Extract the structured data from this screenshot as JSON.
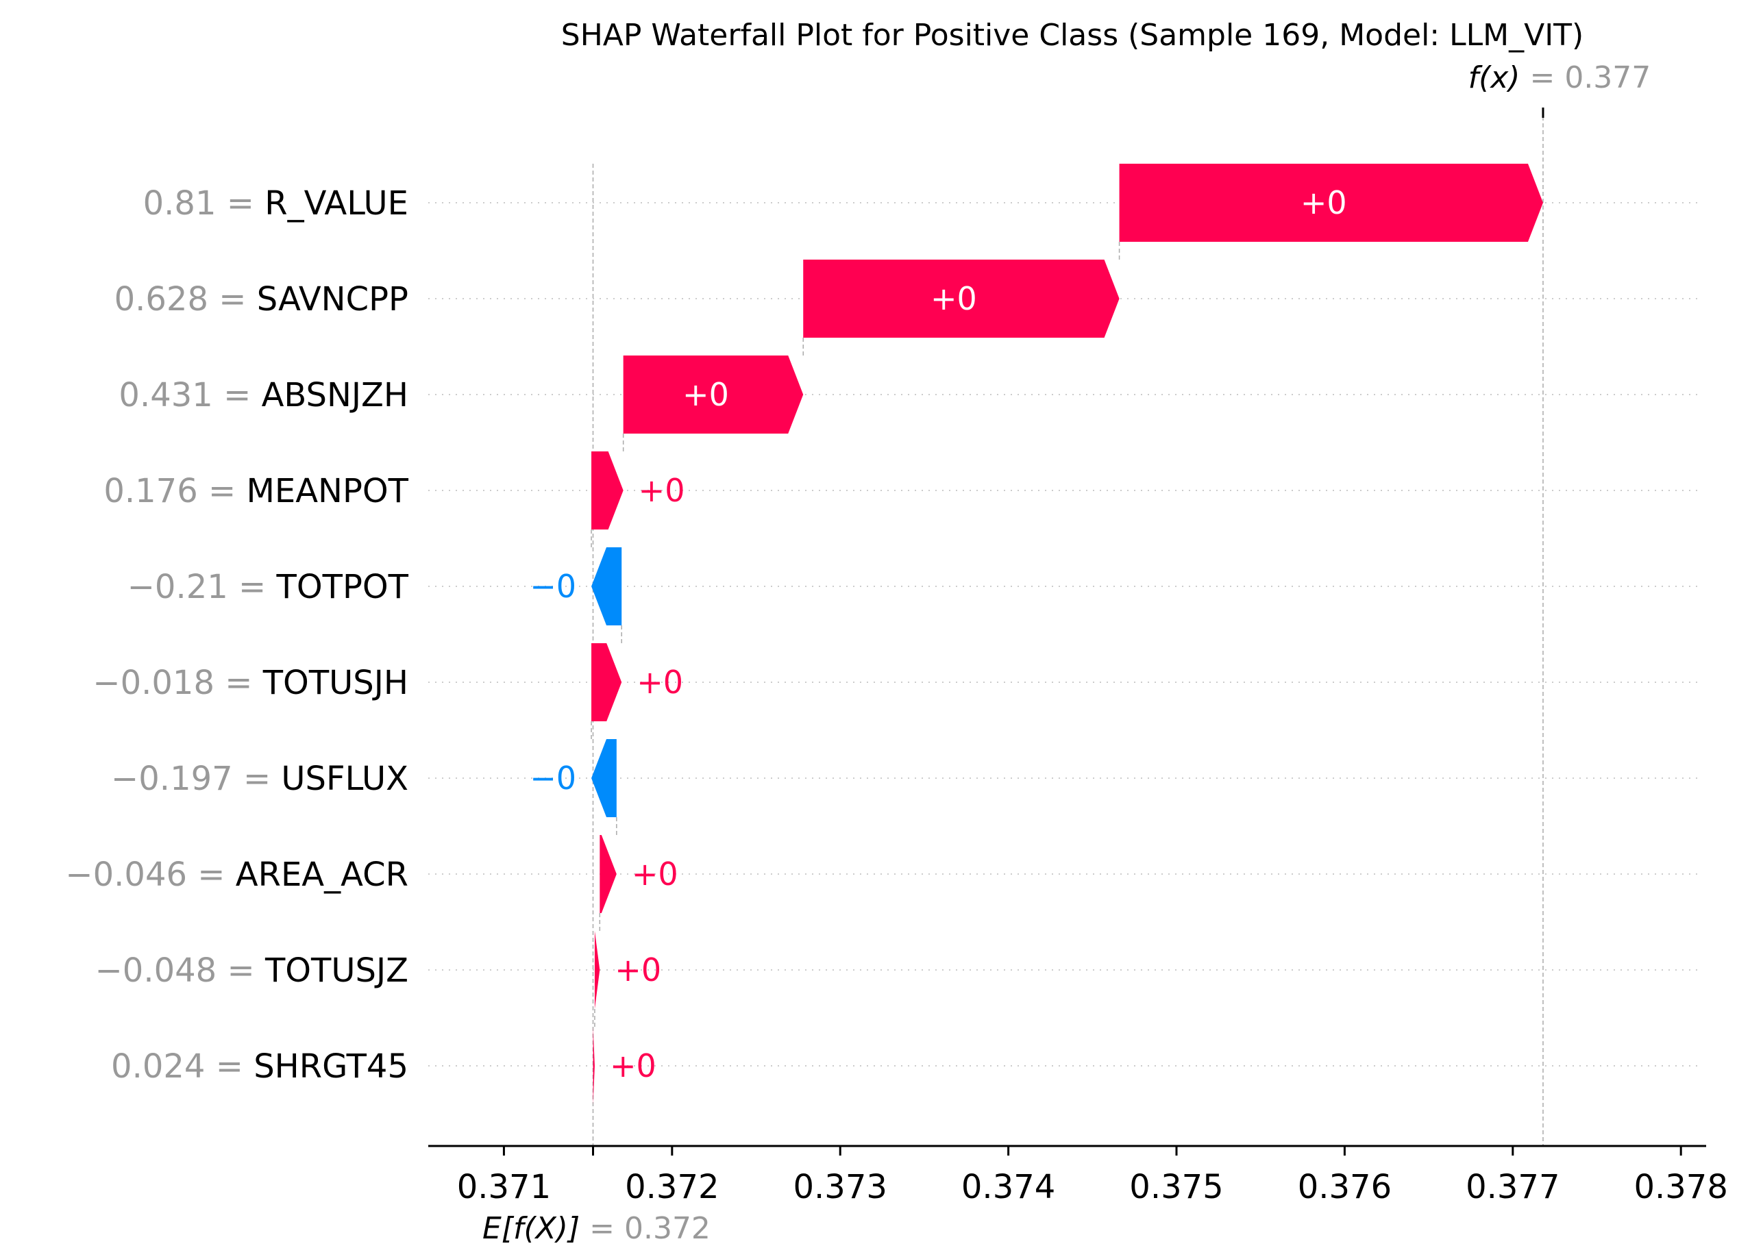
{
  "chart_data": {
    "type": "waterfall",
    "title": "SHAP Waterfall Plot for Positive Class (Sample 169, Model: LLM_VIT)",
    "base_value": 0.37153,
    "base_value_label": "0.372",
    "output_value": 0.37718,
    "output_value_label": "0.377",
    "base_label_lhs": "E[f(X)]",
    "output_label_lhs": "f(x)",
    "xlim": [
      0.37055,
      0.37815
    ],
    "xticks": [
      0.371,
      0.372,
      0.373,
      0.374,
      0.375,
      0.376,
      0.377,
      0.378
    ],
    "xtick_labels": [
      "0.371",
      "0.372",
      "0.373",
      "0.374",
      "0.375",
      "0.376",
      "0.377",
      "0.378"
    ],
    "colors": {
      "positive": "#ff0051",
      "negative": "#008bfb",
      "muted": "#999999"
    },
    "features": [
      {
        "name": "R_VALUE",
        "value": "0.81",
        "shap": 0.00252,
        "start": 0.37466,
        "end": 0.37718,
        "label": "+0"
      },
      {
        "name": "SAVNCPP",
        "value": "0.628",
        "shap": 0.00188,
        "start": 0.37278,
        "end": 0.37466,
        "label": "+0"
      },
      {
        "name": "ABSNJZH",
        "value": "0.431",
        "shap": 0.00107,
        "start": 0.37171,
        "end": 0.37278,
        "label": "+0"
      },
      {
        "name": "MEANPOT",
        "value": "0.176",
        "shap": 0.00019,
        "start": 0.37152,
        "end": 0.37171,
        "label": "+0"
      },
      {
        "name": "TOTPOT",
        "value": "−0.21",
        "shap": -0.00018,
        "start": 0.3717,
        "end": 0.37152,
        "label": "−0"
      },
      {
        "name": "TOTUSJH",
        "value": "−0.018",
        "shap": 0.00018,
        "start": 0.37152,
        "end": 0.3717,
        "label": "+0"
      },
      {
        "name": "USFLUX",
        "value": "−0.197",
        "shap": -0.00015,
        "start": 0.37167,
        "end": 0.37152,
        "label": "−0"
      },
      {
        "name": "AREA_ACR",
        "value": "−0.046",
        "shap": 0.0001,
        "start": 0.37157,
        "end": 0.37167,
        "label": "+0"
      },
      {
        "name": "TOTUSJZ",
        "value": "−0.048",
        "shap": 3e-05,
        "start": 0.37154,
        "end": 0.37157,
        "label": "+0"
      },
      {
        "name": "SHRGT45",
        "value": "0.024",
        "shap": 1e-05,
        "start": 0.37153,
        "end": 0.37154,
        "label": "+0"
      }
    ]
  }
}
